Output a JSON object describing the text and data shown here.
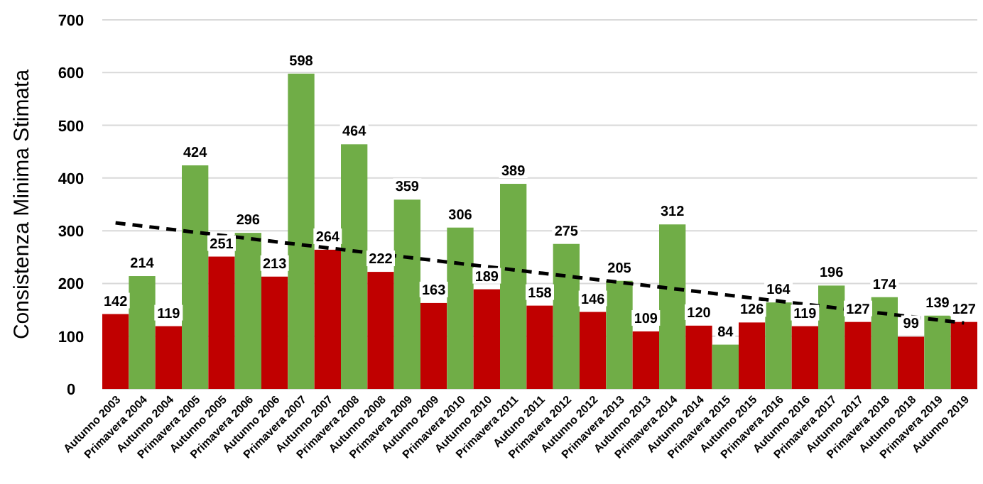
{
  "chart_data": {
    "type": "bar",
    "ylabel": "Consistenza Minima Stimata",
    "categories": [
      "Autunno 2003",
      "Primavera 2004",
      "Autunno 2004",
      "Primavera 2005",
      "Autunno 2005",
      "Primavera 2006",
      "Autunno 2006",
      "Primavera 2007",
      "Autunno 2007",
      "Primavera 2008",
      "Autunno 2008",
      "Primavera 2009",
      "Autunno 2009",
      "Primavera 2010",
      "Autunno 2010",
      "Primavera 2011",
      "Autuno 2011",
      "Primavera 2012",
      "Autunno 2012",
      "Primavera 2013",
      "Autunno 2013",
      "Primavera 2014",
      "Autunno 2014",
      "Primavera 2015",
      "Autunno 2015",
      "Primavera 2016",
      "Autunno 2016",
      "Primavera 2017",
      "Autunno 2017",
      "Primavera 2018",
      "Autunno 2018",
      "Primavera 2019",
      "Autunno 2019"
    ],
    "series": [
      {
        "values": [
          142,
          214,
          119,
          424,
          251,
          296,
          213,
          598,
          264,
          464,
          222,
          359,
          163,
          306,
          189,
          389,
          158,
          275,
          146,
          205,
          109,
          312,
          120,
          84,
          126,
          164,
          119,
          196,
          127,
          174,
          99,
          139,
          127
        ],
        "value_labels": [
          "142",
          "214",
          "119",
          "424",
          "251",
          "296",
          "213",
          "598",
          "264",
          "464",
          "222",
          "359",
          "163",
          "306",
          "189",
          "389",
          "158",
          "275",
          "146",
          "205",
          "109",
          "312",
          "120",
          "84",
          "126",
          "164",
          "119",
          "196",
          "127",
          "174",
          "99",
          "139",
          "127"
        ],
        "colors": [
          "#c00000",
          "#70ad47",
          "#c00000",
          "#70ad47",
          "#c00000",
          "#70ad47",
          "#c00000",
          "#70ad47",
          "#c00000",
          "#70ad47",
          "#c00000",
          "#70ad47",
          "#c00000",
          "#70ad47",
          "#c00000",
          "#70ad47",
          "#c00000",
          "#70ad47",
          "#c00000",
          "#70ad47",
          "#c00000",
          "#70ad47",
          "#c00000",
          "#70ad47",
          "#c00000",
          "#70ad47",
          "#c00000",
          "#70ad47",
          "#c00000",
          "#70ad47",
          "#c00000",
          "#70ad47",
          "#c00000"
        ]
      },
      {
        "type": "line",
        "color": "#000000",
        "line_style": "dashed",
        "x": [
          "Autunno 2003",
          "Autunno 2019"
        ],
        "values": [
          315,
          125
        ]
      }
    ],
    "ylim": [
      0,
      700
    ],
    "yticks": [
      0,
      100,
      200,
      300,
      400,
      500,
      600,
      700
    ],
    "grid": "y"
  }
}
